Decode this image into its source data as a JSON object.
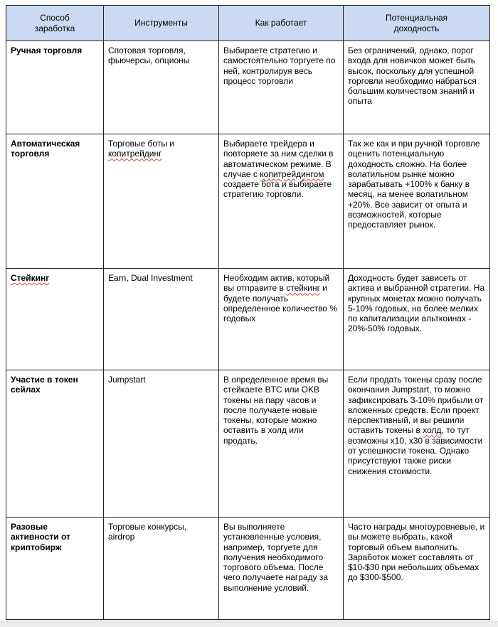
{
  "page": {
    "background": "#ffffff",
    "bottom_strip_color": "#ececec"
  },
  "table": {
    "header_bg": "#cbdaf2",
    "border_color": "#202020",
    "spellcheck_color": "#e0443e",
    "columns": [
      "Способ\nзаработка",
      "Инструменты",
      "Как работает",
      "Потенциальная\nдоходность"
    ],
    "rows": [
      {
        "method": [
          {
            "t": "Ручная торговля"
          }
        ],
        "tools": [
          {
            "t": "Спотовая торговля, фьючерсы, опционы"
          }
        ],
        "how": [
          {
            "t": "Выбираете стратегию и самостоятельно торгуете по ней, контролируя весь процесс торговли"
          }
        ],
        "profit": [
          {
            "t": "Без ограничений, однако, порог входа для новичков может быть высок, поскольку для успешной торговли необходимо набраться большим количеством знаний и опыта"
          }
        ]
      },
      {
        "method": [
          {
            "t": "Автоматическая\nторговля"
          }
        ],
        "tools": [
          {
            "t": "Торговые боты и "
          },
          {
            "t": "копитрейдинг",
            "sp": true
          }
        ],
        "how": [
          {
            "t": "Выбираете трейдера и повторяете за ним сделки в автоматическом режиме. В случае с "
          },
          {
            "t": "копитрейдингом",
            "sp": true
          },
          {
            "t": " создаете бота и выбираете стратегию торговли."
          }
        ],
        "profit": [
          {
            "t": "Так же как и при ручной торговле оценить потенциальную доходность сложно. На более волатильном рынке можно зарабатывать +100% к банку в месяц, на менее волатильном +20%. Все зависит от опыта и возможностей, которые предоставляет рынок."
          }
        ]
      },
      {
        "method": [
          {
            "t": "Стейкинг",
            "sp": true
          }
        ],
        "tools": [
          {
            "t": "Earn, Dual Investment"
          }
        ],
        "how": [
          {
            "t": "Необходим актив, который вы отправите в "
          },
          {
            "t": "стейкинг",
            "sp": true
          },
          {
            "t": " и будете получать определенное количество % годовых"
          }
        ],
        "profit": [
          {
            "t": "Доходность будет зависеть от актива и выбранной стратегии. На крупных монетах можно получать 5-10% годовых, на более мелких по капитализации альткоинах - 20%-50% годовых."
          }
        ]
      },
      {
        "method": [
          {
            "t": "Участие в токен\nсейлах"
          }
        ],
        "tools": [
          {
            "t": "Jumpstart"
          }
        ],
        "how": [
          {
            "t": "В определенное время вы стейкаете BTC или OKB токены на пару часов и после получаете новые токены, которые можно оставить в холд или продать."
          }
        ],
        "profit": [
          {
            "t": "Если продать токены сразу после окончания Jumpstart, то можно зафиксировать 3-10% прибыли от вложенных средств. Если проект перспективный, и вы решили оставить токены в "
          },
          {
            "t": "холд",
            "sp": true
          },
          {
            "t": ", то тут возможны x10, x30 в зависимости от успешности токена. Однако присутствуют также риски снижения стоимости."
          }
        ]
      },
      {
        "method": [
          {
            "t": "Разовые\nактивности от\nкриптобирж"
          }
        ],
        "tools": [
          {
            "t": "Торговые конкурсы, airdrop"
          }
        ],
        "how": [
          {
            "t": "Вы выполняете установленные условия, например, торгуете для получения необходимого торгового объема. После чего получаете награду за выполнение условий."
          }
        ],
        "profit": [
          {
            "t": "Часто награды многоуровневые, и вы можете выбрать, какой торговый объем выполнить. Заработок может составлять от $10-$30 при небольших объемах до $300-$500."
          }
        ]
      }
    ]
  }
}
